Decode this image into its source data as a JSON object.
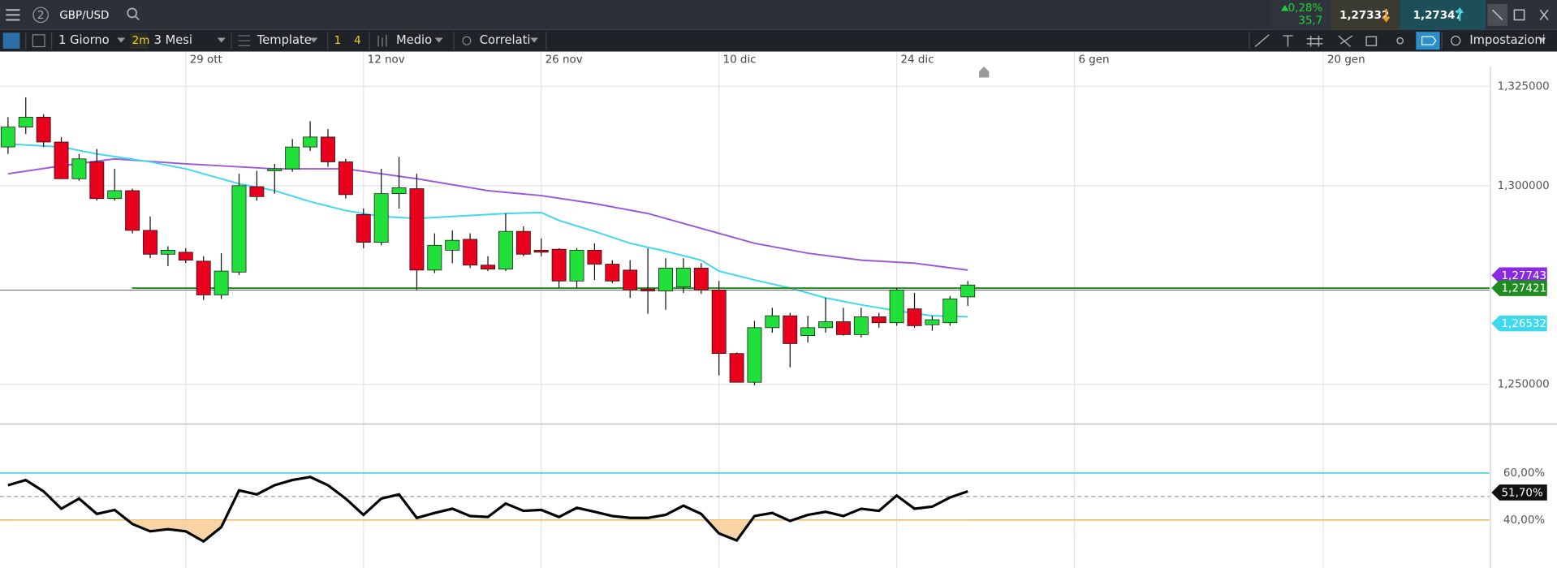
{
  "toolbar": {
    "layout_badge": "2",
    "symbol": "GBP/USD",
    "change_pct": "0,28%",
    "change_pts": "35,7",
    "bid": "1,27332",
    "ask": "1,27347",
    "timeframe": "1 Giorno",
    "timeframe_badge": "2m",
    "range": "3 Mesi",
    "template": "Template",
    "count_a": "1",
    "count_b": "4",
    "indicator": "Medio",
    "correlated": "Correlati",
    "settings": "Impostazioni"
  },
  "chart_data": [
    {
      "type": "candlestick",
      "xlim": [
        -0.45,
        83.35
      ],
      "xticks": [
        {
          "value": 10,
          "label": "29 ott"
        },
        {
          "value": 20,
          "label": "12 nov"
        },
        {
          "value": 30,
          "label": "26 nov"
        },
        {
          "value": 40,
          "label": "10 dic"
        },
        {
          "value": 50,
          "label": "24 dic"
        },
        {
          "value": 60,
          "label": "6 gen"
        },
        {
          "value": 74,
          "label": "20 gen"
        }
      ],
      "ylim": [
        1.24,
        1.33
      ],
      "yticks": [
        {
          "value": 1.325,
          "label": "1,325000"
        },
        {
          "value": 1.3,
          "label": "1,300000"
        },
        {
          "value": 1.25,
          "label": "1,250000"
        }
      ],
      "grid": true,
      "up_color": "#22e03a",
      "down_color": "#e8001c",
      "open": [
        1.30975,
        1.31475,
        1.31725,
        1.311,
        1.30175,
        1.306,
        1.29675,
        1.29875,
        1.28875,
        1.28275,
        1.28325,
        1.281,
        1.2725,
        1.27825,
        1.29975,
        1.30375,
        1.30425,
        1.30975,
        1.31225,
        1.306,
        1.29275,
        1.28575,
        1.298,
        1.29925,
        1.27875,
        1.28375,
        1.2865,
        1.28,
        1.279,
        1.2885,
        1.28375,
        1.284,
        1.276,
        1.28375,
        1.28025,
        1.27875,
        1.274,
        1.2735,
        1.2745,
        1.27925,
        1.27375,
        1.25775,
        1.2505,
        1.26425,
        1.26725,
        1.26225,
        1.26425,
        1.26575,
        1.2625,
        1.267,
        1.2655,
        1.269,
        1.265,
        1.2655,
        1.272
      ],
      "high": [
        1.31725,
        1.32225,
        1.318,
        1.31225,
        1.308,
        1.30925,
        1.30425,
        1.29925,
        1.29225,
        1.28475,
        1.28425,
        1.28225,
        1.283,
        1.303,
        1.30375,
        1.3055,
        1.31175,
        1.31625,
        1.31425,
        1.30675,
        1.29425,
        1.30425,
        1.30725,
        1.303,
        1.288,
        1.28875,
        1.288,
        1.28225,
        1.293,
        1.28975,
        1.28675,
        1.28425,
        1.28425,
        1.2855,
        1.28125,
        1.28125,
        1.28425,
        1.28175,
        1.28175,
        1.2805,
        1.276,
        1.258,
        1.266,
        1.26925,
        1.268,
        1.26725,
        1.27175,
        1.26925,
        1.26925,
        1.268,
        1.27425,
        1.273,
        1.26725,
        1.27225,
        1.276
      ],
      "low": [
        1.308,
        1.313,
        1.30975,
        1.30175,
        1.30125,
        1.29625,
        1.29625,
        1.288,
        1.28175,
        1.27975,
        1.2805,
        1.27125,
        1.2715,
        1.2775,
        1.29625,
        1.298,
        1.3035,
        1.30875,
        1.30475,
        1.29675,
        1.28425,
        1.285,
        1.29425,
        1.27375,
        1.278,
        1.2805,
        1.27925,
        1.2785,
        1.2785,
        1.28225,
        1.28225,
        1.27425,
        1.27425,
        1.27625,
        1.2755,
        1.27175,
        1.26775,
        1.26875,
        1.273,
        1.27275,
        1.25225,
        1.2505,
        1.24975,
        1.263,
        1.25425,
        1.2605,
        1.263,
        1.26225,
        1.26175,
        1.26425,
        1.26475,
        1.26425,
        1.2635,
        1.26475,
        1.26975
      ],
      "close": [
        1.31475,
        1.31725,
        1.311,
        1.30175,
        1.30675,
        1.29675,
        1.29875,
        1.28875,
        1.28275,
        1.28375,
        1.28125,
        1.2725,
        1.2785,
        1.3,
        1.29725,
        1.30425,
        1.30975,
        1.31225,
        1.306,
        1.29775,
        1.28575,
        1.298,
        1.2995,
        1.27875,
        1.285,
        1.28625,
        1.28,
        1.279,
        1.2885,
        1.28275,
        1.28325,
        1.276,
        1.28375,
        1.28025,
        1.276,
        1.27375,
        1.2735,
        1.27925,
        1.27925,
        1.27375,
        1.25775,
        1.2505,
        1.26425,
        1.26725,
        1.26025,
        1.26425,
        1.26575,
        1.2625,
        1.267,
        1.2655,
        1.27375,
        1.26475,
        1.26625,
        1.2715,
        1.275
      ],
      "lines": [
        {
          "color": "#9b59d9",
          "x": [
            0,
            3,
            6,
            10,
            15,
            19,
            23,
            27,
            30,
            33,
            36,
            39,
            42,
            45,
            48,
            51,
            54
          ],
          "values": [
            1.303,
            1.305,
            1.30675,
            1.3055,
            1.30425,
            1.30425,
            1.30175,
            1.29875,
            1.2975,
            1.2955,
            1.293,
            1.28925,
            1.2855,
            1.283,
            1.28125,
            1.2805,
            1.27875
          ],
          "last_label": {
            "value": 1.277433,
            "label": "1,277433"
          },
          "tag_color": "#8a2be2"
        },
        {
          "color": "#3fd8ec",
          "x": [
            0,
            3,
            5,
            8,
            10,
            13,
            15,
            17,
            19,
            21,
            23,
            25,
            28,
            30,
            31,
            33,
            35,
            37,
            39,
            40,
            42,
            44,
            46,
            48,
            50,
            52,
            54
          ],
          "values": [
            1.3105,
            1.30975,
            1.308,
            1.306,
            1.30425,
            1.3005,
            1.29875,
            1.296,
            1.29375,
            1.29225,
            1.29175,
            1.29225,
            1.293,
            1.29325,
            1.29125,
            1.2885,
            1.2855,
            1.2835,
            1.28125,
            1.2785,
            1.27625,
            1.27425,
            1.27175,
            1.27,
            1.2685,
            1.26725,
            1.267
          ],
          "last_label": {
            "value": 1.26532,
            "label": "1,265320"
          },
          "tag_color": "#3fd8ec"
        }
      ],
      "price_line": {
        "value": 1.274218,
        "label": "1,274218",
        "color": "#1e8c1e"
      }
    },
    {
      "type": "line",
      "ylim": [
        19.6,
        80.4
      ],
      "yticks": [
        {
          "value": 60,
          "label": "60,00%"
        },
        {
          "value": 40,
          "label": "40,00%"
        }
      ],
      "ref_colors": [
        "#3fd3e0",
        "#e8b35a"
      ],
      "midline": 50,
      "color": "#000000",
      "fill_color": "#f9d3a3",
      "values": [
        54.8,
        57.0,
        52.2,
        44.8,
        49.1,
        42.6,
        44.3,
        38.3,
        35.2,
        36.1,
        35.2,
        30.9,
        37.0,
        52.6,
        50.9,
        54.8,
        57.0,
        58.3,
        54.8,
        49.1,
        42.2,
        49.1,
        50.9,
        40.9,
        43.0,
        44.8,
        41.7,
        41.3,
        47.0,
        43.9,
        44.3,
        41.3,
        45.2,
        43.5,
        41.7,
        40.9,
        40.9,
        42.2,
        46.1,
        42.6,
        34.3,
        31.3,
        41.7,
        43.0,
        39.6,
        42.2,
        43.5,
        41.7,
        44.8,
        43.9,
        50.4,
        44.8,
        45.7,
        49.6,
        52.2
      ],
      "last_label": {
        "value": 51.7,
        "label": "51,70%"
      }
    }
  ]
}
